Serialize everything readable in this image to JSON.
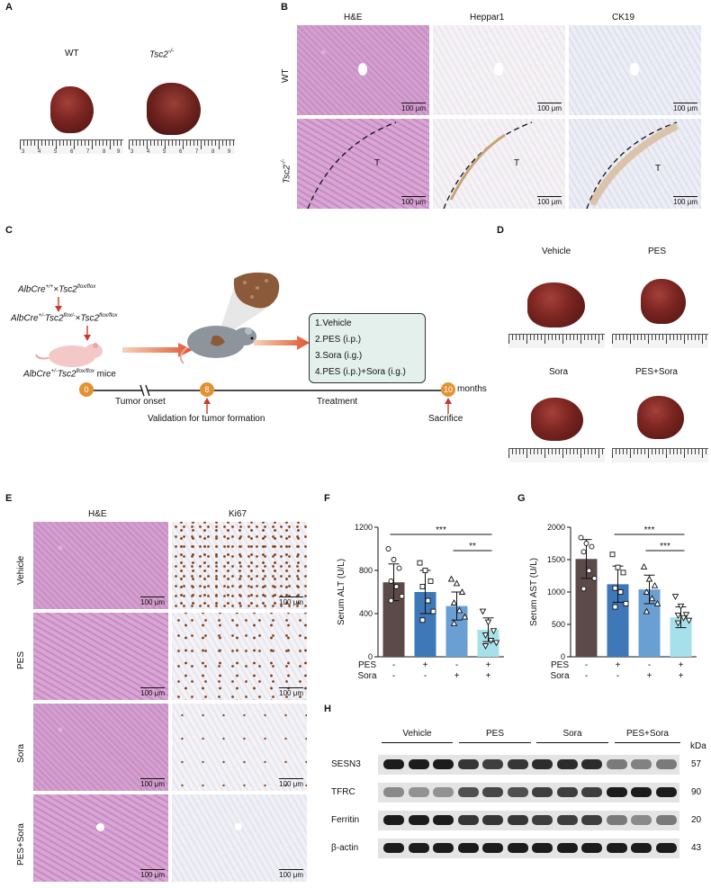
{
  "panels": {
    "A": "A",
    "B": "B",
    "C": "C",
    "D": "D",
    "E": "E",
    "F": "F",
    "G": "G",
    "H": "H"
  },
  "panelA": {
    "wt": "WT",
    "tsc_base": "Tsc2",
    "tsc_sup": "-/-",
    "ruler_numbers": [
      "3",
      "4",
      "5",
      "6",
      "7",
      "8",
      "9"
    ]
  },
  "panelB": {
    "cols": [
      "H&E",
      "Heppar1",
      "CK19"
    ],
    "rows": {
      "wt": "WT",
      "tsc_base": "Tsc2",
      "tsc_sup": "-/-"
    },
    "scale": "100 μm",
    "tumor": "T"
  },
  "panelC": {
    "cross1_a": "AlbCre",
    "cross1_a_sup": "+/+",
    "cross1_b": "×Tsc2",
    "cross1_b_sup": "flox/flox",
    "cross2_a": "AlbCre",
    "cross2_a_sup": "+/-",
    "cross2_b": "Tsc2",
    "cross2_b_sup": "flox/-",
    "cross2_c": "×Tsc2",
    "cross2_c_sup": "flox/flox",
    "mice_a": "AlbCre",
    "mice_a_sup": "+/-",
    "mice_b": "Tsc2",
    "mice_b_sup": "flox/flox",
    "mice_c": " mice",
    "treatments": [
      "1.Vehicle",
      "2.PES (i.p.)",
      "3.Sora (i.g.)",
      "4.PES (i.p.)+Sora (i.g.)"
    ],
    "time_points": [
      "0",
      "8",
      "10"
    ],
    "months": "months",
    "tumor_onset": "Tumor onset",
    "validation": "Validation for tumor formation",
    "treatment": "Treatment",
    "sacrifice": "Sacrifice"
  },
  "panelD": {
    "groups": [
      "Vehicle",
      "PES",
      "Sora",
      "PES+Sora"
    ]
  },
  "panelE": {
    "cols": [
      "H&E",
      "Ki67"
    ],
    "rows": [
      "Vehicle",
      "PES",
      "Sora",
      "PES+Sora"
    ],
    "scale": "100 μm"
  },
  "colors": {
    "vehicle": "#5b4a48",
    "pes": "#3e78b8",
    "sora": "#6a9fd4",
    "combo": "#a6e0ea"
  },
  "chart_data": [
    {
      "type": "bar",
      "panel": "F",
      "ylabel": "Serum ALT (U/L)",
      "ylim": [
        0,
        1200
      ],
      "yticks": [
        0,
        400,
        800,
        1200
      ],
      "categories": [
        "Vehicle",
        "PES",
        "Sora",
        "PES+Sora"
      ],
      "values": [
        690,
        600,
        470,
        250
      ],
      "errors": [
        170,
        200,
        130,
        110
      ],
      "points": [
        [
          1000,
          900,
          820,
          700,
          650,
          560,
          520
        ],
        [
          870,
          800,
          700,
          650,
          520,
          420,
          340
        ],
        [
          720,
          680,
          600,
          500,
          430,
          370,
          310
        ],
        [
          420,
          320,
          240,
          200,
          150,
          130,
          100
        ]
      ],
      "factor_rows": [
        {
          "name": "PES",
          "signs": [
            "-",
            "+",
            "-",
            "+"
          ]
        },
        {
          "name": "Sora",
          "signs": [
            "-",
            "-",
            "+",
            "+"
          ]
        }
      ],
      "sig": [
        {
          "label": "***"
        },
        {
          "label": "**"
        }
      ]
    },
    {
      "type": "bar",
      "panel": "G",
      "ylabel": "Serum AST (U/L)",
      "ylim": [
        0,
        2000
      ],
      "yticks": [
        0,
        500,
        1000,
        1500,
        2000
      ],
      "categories": [
        "Vehicle",
        "PES",
        "Sora",
        "PES+Sora"
      ],
      "values": [
        1510,
        1120,
        1040,
        610
      ],
      "errors": [
        300,
        280,
        220,
        160
      ],
      "points": [
        [
          1840,
          1750,
          1700,
          1620,
          1330,
          1210,
          1050
        ],
        [
          1580,
          1380,
          1300,
          1060,
          1000,
          820,
          770
        ],
        [
          1390,
          1200,
          1100,
          1000,
          900,
          820,
          700
        ],
        [
          930,
          780,
          650,
          640,
          600,
          560,
          520
        ]
      ],
      "factor_rows": [
        {
          "name": "PES",
          "signs": [
            "-",
            "+",
            "-",
            "+"
          ]
        },
        {
          "name": "Sora",
          "signs": [
            "-",
            "-",
            "+",
            "+"
          ]
        }
      ],
      "sig": [
        {
          "label": "***"
        },
        {
          "label": "***"
        }
      ]
    }
  ],
  "panelH": {
    "groups": [
      "Vehicle",
      "PES",
      "Sora",
      "PES+Sora"
    ],
    "kda": "kDa",
    "proteins": [
      {
        "name": "SESN3",
        "kda": "57",
        "intensity": [
          1,
          1,
          1,
          0.85,
          0.8,
          0.85,
          0.9,
          0.9,
          0.9,
          0.45,
          0.4,
          0.45
        ]
      },
      {
        "name": "TFRC",
        "kda": "90",
        "intensity": [
          0.35,
          0.3,
          0.3,
          0.7,
          0.75,
          0.7,
          0.8,
          0.8,
          0.8,
          1,
          1,
          1
        ]
      },
      {
        "name": "Ferritin",
        "kda": "20",
        "intensity": [
          1,
          1,
          1,
          0.85,
          0.85,
          0.85,
          0.8,
          0.8,
          0.8,
          0.45,
          0.35,
          0.45
        ]
      },
      {
        "name": "β-actin",
        "kda": "43",
        "intensity": [
          1,
          1,
          1,
          1,
          1,
          1,
          1,
          1,
          1,
          1,
          1,
          1
        ]
      }
    ]
  }
}
